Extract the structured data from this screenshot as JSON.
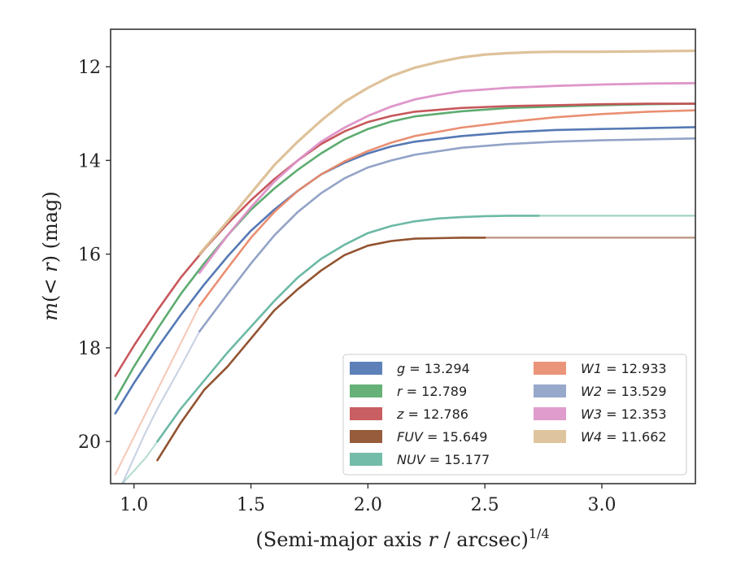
{
  "chart_data": {
    "type": "line",
    "xlabel": "(Semi-major axis r / arcsec)",
    "xlabel_parts": {
      "before": "(Semi-major axis ",
      "var": "r",
      "after": " / arcsec)",
      "sup": "1/4"
    },
    "ylabel_parts": {
      "m": "m",
      "open": "(",
      "lt": "< ",
      "var": "r",
      "close": ")",
      "unit": " (mag)"
    },
    "xlim": [
      0.9,
      3.4
    ],
    "ylim": [
      20.9,
      11.2
    ],
    "y_inverted": true,
    "xticks": [
      1.0,
      1.5,
      2.0,
      2.5,
      3.0
    ],
    "xtick_labels": [
      "1.0",
      "1.5",
      "2.0",
      "2.5",
      "3.0"
    ],
    "yticks": [
      12,
      14,
      16,
      18,
      20
    ],
    "ytick_labels": [
      "12",
      "14",
      "16",
      "18",
      "20"
    ],
    "grid": false,
    "legend_placement": "lower-right",
    "legend_columns": 2,
    "series": [
      {
        "band": "g",
        "value": "13.294",
        "color": "#4c72b0",
        "width": 2.6,
        "x": [
          0.92,
          1.0,
          1.1,
          1.2,
          1.3,
          1.4,
          1.5,
          1.6,
          1.7,
          1.8,
          1.9,
          2.0,
          2.1,
          2.2,
          2.4,
          2.6,
          2.8,
          3.0,
          3.2,
          3.4
        ],
        "y": [
          19.4,
          18.75,
          18.0,
          17.3,
          16.65,
          16.05,
          15.5,
          15.05,
          14.65,
          14.3,
          14.05,
          13.85,
          13.7,
          13.6,
          13.48,
          13.4,
          13.35,
          13.33,
          13.31,
          13.29
        ]
      },
      {
        "band": "r",
        "value": "12.789",
        "color": "#55a868",
        "width": 2.6,
        "x": [
          0.92,
          1.0,
          1.1,
          1.2,
          1.3,
          1.4,
          1.5,
          1.6,
          1.7,
          1.8,
          1.9,
          2.0,
          2.1,
          2.2,
          2.4,
          2.6,
          2.8,
          3.0,
          3.2,
          3.4
        ],
        "y": [
          19.1,
          18.4,
          17.6,
          16.85,
          16.2,
          15.6,
          15.05,
          14.6,
          14.2,
          13.85,
          13.55,
          13.33,
          13.17,
          13.06,
          12.95,
          12.88,
          12.85,
          12.82,
          12.8,
          12.79
        ]
      },
      {
        "band": "z",
        "value": "12.786",
        "color": "#c44e52",
        "width": 2.6,
        "x": [
          0.92,
          1.0,
          1.1,
          1.2,
          1.3,
          1.4,
          1.5,
          1.6,
          1.7,
          1.8,
          1.9,
          2.0,
          2.1,
          2.2,
          2.4,
          2.6,
          2.8,
          3.0,
          3.2,
          3.4
        ],
        "y": [
          18.6,
          17.95,
          17.2,
          16.5,
          15.9,
          15.35,
          14.85,
          14.4,
          14.0,
          13.65,
          13.38,
          13.18,
          13.05,
          12.96,
          12.88,
          12.84,
          12.82,
          12.8,
          12.79,
          12.79
        ]
      },
      {
        "band": "FUV",
        "value": "15.649",
        "color": "#8c4a26",
        "width": 2.6,
        "faint_from": 2.5,
        "x": [
          1.1,
          1.2,
          1.3,
          1.4,
          1.5,
          1.6,
          1.7,
          1.8,
          1.9,
          2.0,
          2.1,
          2.2,
          2.3,
          2.4,
          2.5,
          2.7,
          3.0,
          3.2,
          3.4
        ],
        "y": [
          20.4,
          19.6,
          18.9,
          18.4,
          17.8,
          17.2,
          16.75,
          16.35,
          16.02,
          15.82,
          15.72,
          15.67,
          15.66,
          15.65,
          15.65,
          15.65,
          15.65,
          15.65,
          15.65
        ]
      },
      {
        "band": "NUV",
        "value": "15.177",
        "color": "#64b5a0",
        "width": 2.6,
        "faint_from": 2.73,
        "faint_before": 1.1,
        "x": [
          0.95,
          1.05,
          1.1,
          1.2,
          1.3,
          1.4,
          1.5,
          1.6,
          1.7,
          1.8,
          1.9,
          2.0,
          2.1,
          2.2,
          2.3,
          2.4,
          2.5,
          2.6,
          2.73,
          3.0,
          3.2,
          3.4
        ],
        "y": [
          20.9,
          20.35,
          20.0,
          19.3,
          18.7,
          18.1,
          17.55,
          17.0,
          16.5,
          16.1,
          15.8,
          15.55,
          15.4,
          15.3,
          15.24,
          15.21,
          15.19,
          15.18,
          15.18,
          15.18,
          15.18,
          15.18
        ]
      },
      {
        "band": "W1",
        "value": "12.933",
        "color": "#e8896a",
        "width": 2.6,
        "faint_before": 1.28,
        "x": [
          0.92,
          1.0,
          1.1,
          1.2,
          1.28,
          1.4,
          1.5,
          1.6,
          1.7,
          1.8,
          1.9,
          2.0,
          2.1,
          2.2,
          2.4,
          2.6,
          2.8,
          3.0,
          3.2,
          3.4
        ],
        "y": [
          20.7,
          19.9,
          18.9,
          17.9,
          17.1,
          16.3,
          15.65,
          15.1,
          14.65,
          14.3,
          14.02,
          13.8,
          13.62,
          13.48,
          13.3,
          13.18,
          13.08,
          13.01,
          12.96,
          12.93
        ]
      },
      {
        "band": "W2",
        "value": "13.529",
        "color": "#8c9ec4",
        "width": 2.6,
        "faint_before": 1.28,
        "x": [
          0.95,
          1.05,
          1.1,
          1.2,
          1.28,
          1.4,
          1.5,
          1.6,
          1.7,
          1.8,
          1.9,
          2.0,
          2.1,
          2.2,
          2.4,
          2.6,
          2.8,
          3.0,
          3.2,
          3.4
        ],
        "y": [
          20.9,
          19.8,
          19.3,
          18.4,
          17.65,
          16.85,
          16.2,
          15.6,
          15.1,
          14.7,
          14.38,
          14.15,
          14.0,
          13.88,
          13.73,
          13.65,
          13.6,
          13.57,
          13.55,
          13.53
        ]
      },
      {
        "band": "W3",
        "value": "12.353",
        "color": "#dd91c7",
        "width": 2.8,
        "x": [
          1.28,
          1.4,
          1.5,
          1.6,
          1.7,
          1.8,
          1.9,
          2.0,
          2.1,
          2.2,
          2.3,
          2.4,
          2.6,
          2.8,
          3.0,
          3.2,
          3.4
        ],
        "y": [
          16.4,
          15.6,
          15.0,
          14.45,
          14.0,
          13.6,
          13.3,
          13.05,
          12.85,
          12.7,
          12.6,
          12.52,
          12.45,
          12.41,
          12.38,
          12.36,
          12.35
        ]
      },
      {
        "band": "W4",
        "value": "11.662",
        "color": "#dcbf95",
        "width": 3.2,
        "x": [
          1.28,
          1.4,
          1.5,
          1.6,
          1.7,
          1.8,
          1.9,
          2.0,
          2.1,
          2.2,
          2.3,
          2.4,
          2.5,
          2.6,
          2.7,
          2.8,
          3.0,
          3.2,
          3.4
        ],
        "y": [
          16.0,
          15.3,
          14.7,
          14.1,
          13.6,
          13.15,
          12.75,
          12.45,
          12.2,
          12.02,
          11.9,
          11.8,
          11.74,
          11.71,
          11.69,
          11.68,
          11.68,
          11.67,
          11.66
        ]
      }
    ]
  }
}
